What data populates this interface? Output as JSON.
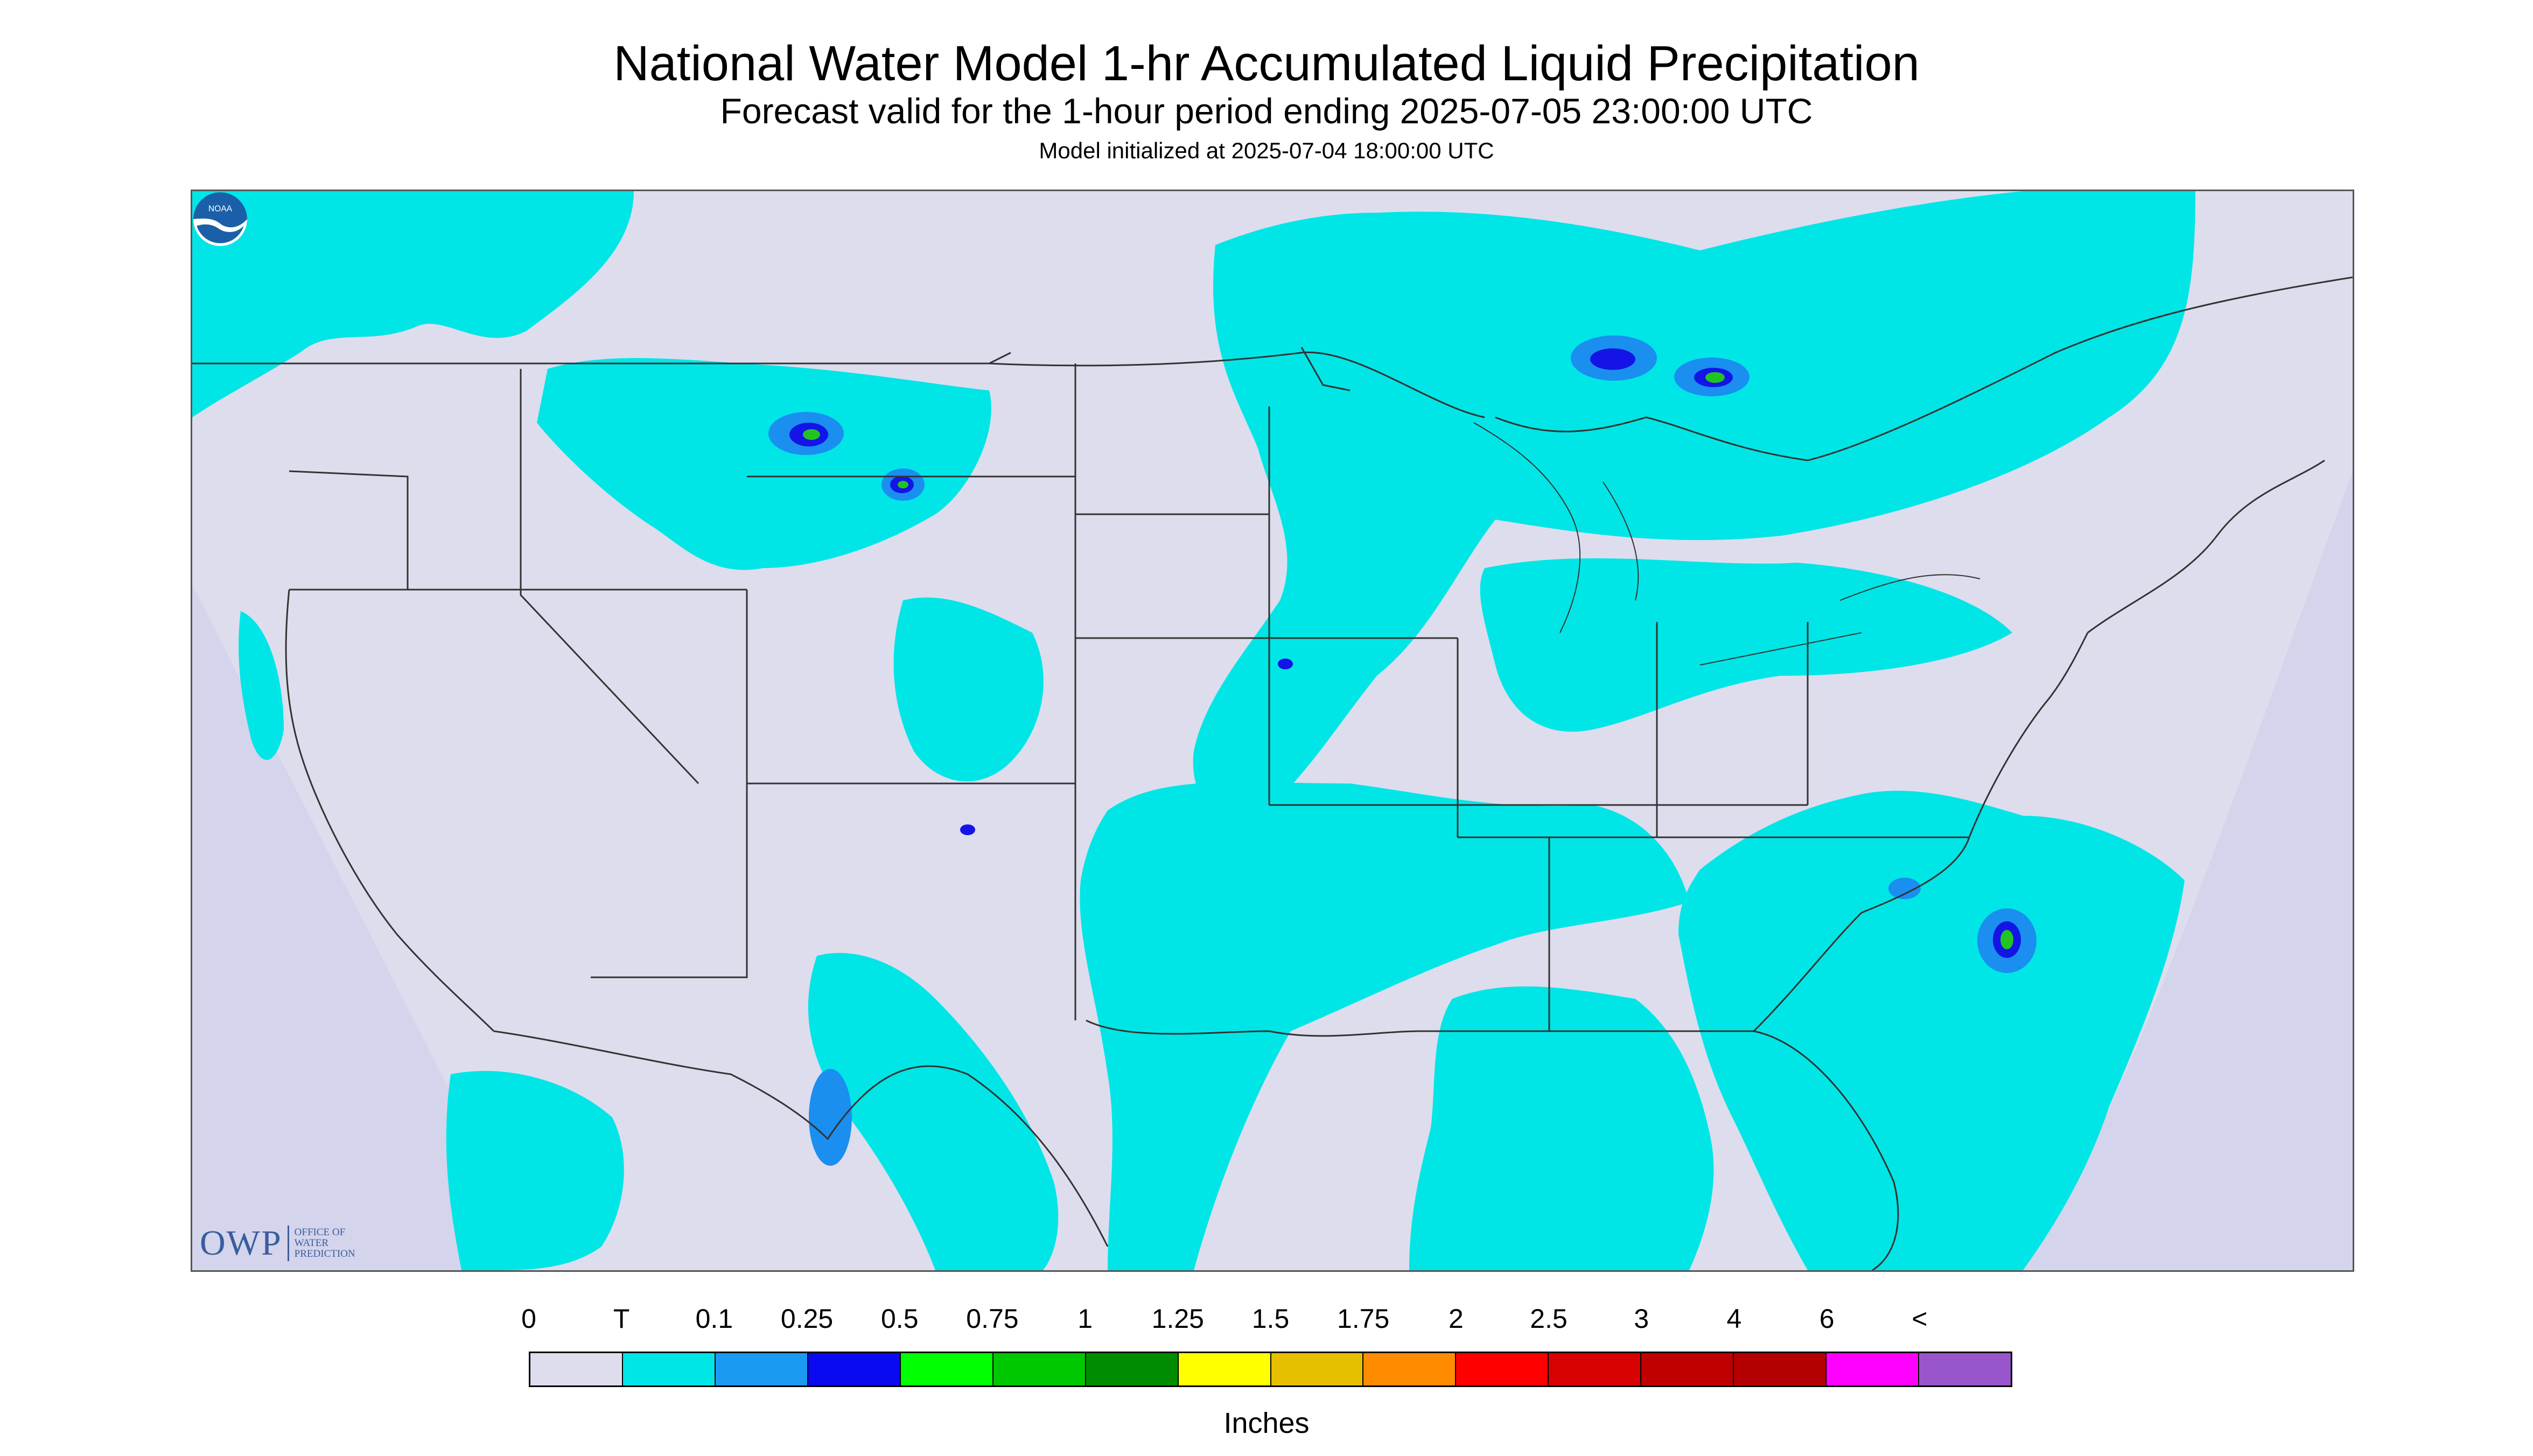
{
  "header": {
    "title": "National Water Model 1-hr Accumulated Liquid Precipitation",
    "subtitle": "Forecast valid for the 1-hour period ending 2025-07-05 23:00:00 UTC",
    "init": "Model initialized at 2025-07-04 18:00:00 UTC"
  },
  "map": {
    "background_color": "#ddddee",
    "precip_color_trace": "#00e6e6",
    "precip_color_light": "#1a8ff0",
    "precip_color_heavy": "#1414e6",
    "precip_color_green": "#22c422",
    "boundary_color": "#333333"
  },
  "logos": {
    "owp_mark": "OWP",
    "owp_line1": "OFFICE OF",
    "owp_line2": "WATER",
    "owp_line3": "PREDICTION",
    "noaa_icon": "noaa-logo-icon",
    "noaa_text": "NOAA"
  },
  "legend": {
    "labels": [
      "0",
      "T",
      "0.1",
      "0.25",
      "0.5",
      "0.75",
      "1",
      "1.25",
      "1.5",
      "1.75",
      "2",
      "2.5",
      "3",
      "4",
      "6",
      "<"
    ],
    "colors": [
      "#ddddee",
      "#00e6e6",
      "#1a9af0",
      "#0a0af0",
      "#00ff00",
      "#00c800",
      "#008c00",
      "#ffff00",
      "#e6c000",
      "#ff8c00",
      "#ff0000",
      "#d80000",
      "#c00000",
      "#b40000",
      "#ff00ff",
      "#9955cc"
    ],
    "units": "Inches"
  }
}
